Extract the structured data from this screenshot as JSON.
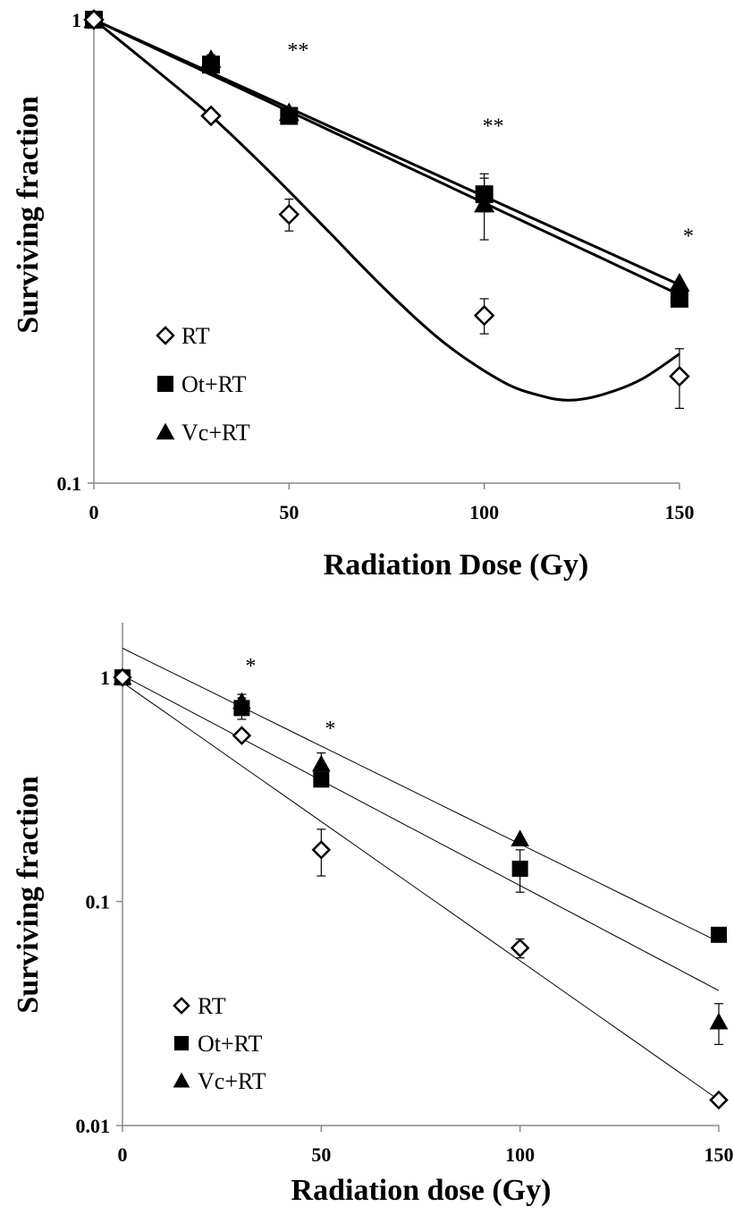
{
  "chart_data": [
    {
      "type": "scatter",
      "xlabel": "Radiation Dose (Gy)",
      "ylabel": "Surviving fraction",
      "yscale": "log",
      "xlim": [
        0,
        150
      ],
      "ylim": [
        0.1,
        1
      ],
      "xticks": [
        0,
        50,
        100,
        150
      ],
      "yticks": [
        0.1,
        1
      ],
      "ytick_labels": [
        "0.1",
        "1"
      ],
      "grid": false,
      "legend_position": "bottom-left",
      "x": [
        0,
        30,
        50,
        100,
        150
      ],
      "series": [
        {
          "name": "RT",
          "marker": "diamond-open",
          "values": [
            1,
            0.62,
            0.38,
            0.23,
            0.17
          ],
          "err": [
            0,
            0,
            0.03,
            0.02,
            0.025
          ]
        },
        {
          "name": "Ot+RT",
          "marker": "square",
          "values": [
            1,
            0.8,
            0.62,
            0.42,
            0.25
          ],
          "err": [
            0,
            0,
            0,
            0.035,
            0
          ]
        },
        {
          "name": "Vc+RT",
          "marker": "triangle",
          "values": [
            1,
            0.82,
            0.63,
            0.4,
            0.27
          ],
          "err": [
            0,
            0.02,
            0,
            0.065,
            0
          ]
        }
      ],
      "fits": [
        {
          "series": "RT",
          "kind": "polynomial",
          "x": [
            0,
            15,
            30,
            45,
            60,
            75,
            90,
            105,
            115,
            122,
            130,
            140,
            150
          ],
          "values": [
            1,
            0.79,
            0.62,
            0.47,
            0.35,
            0.26,
            0.2,
            0.165,
            0.154,
            0.151,
            0.155,
            0.167,
            0.19
          ]
        },
        {
          "series": "Ot+RT",
          "kind": "exponential",
          "x": [
            0,
            150
          ],
          "values": [
            1,
            0.255
          ]
        },
        {
          "series": "Vc+RT",
          "kind": "exponential",
          "x": [
            0,
            150
          ],
          "values": [
            1,
            0.268
          ]
        }
      ],
      "annotations": [
        {
          "x": 30,
          "text": "**",
          "y": 1.07
        },
        {
          "x": 50,
          "text": "**",
          "y": 0.83
        },
        {
          "x": 100,
          "text": "**",
          "y": 0.57
        },
        {
          "x": 150,
          "text": "*",
          "y": 0.33
        }
      ]
    },
    {
      "type": "scatter",
      "xlabel": "Radiation dose (Gy)",
      "ylabel": "Surviving fraction",
      "yscale": "log",
      "xlim": [
        0,
        150
      ],
      "ylim": [
        0.01,
        1.6
      ],
      "xticks": [
        0,
        50,
        100,
        150
      ],
      "yticks": [
        0.01,
        0.1,
        1
      ],
      "ytick_labels": [
        "0.01",
        "0.1",
        "1"
      ],
      "grid": false,
      "legend_position": "bottom-left",
      "x": [
        0,
        30,
        50,
        100,
        150
      ],
      "series": [
        {
          "name": "RT",
          "marker": "diamond-open",
          "values": [
            1,
            0.55,
            0.17,
            0.062,
            0.013
          ],
          "err": [
            0,
            0,
            0.04,
            0.006,
            0
          ]
        },
        {
          "name": "Ot+RT",
          "marker": "square",
          "values": [
            1,
            0.73,
            0.35,
            0.14,
            0.071
          ],
          "err": [
            0,
            0.08,
            0,
            0.03,
            0
          ]
        },
        {
          "name": "Vc+RT",
          "marker": "triangle",
          "values": [
            1,
            0.78,
            0.41,
            0.19,
            0.029
          ],
          "err": [
            0,
            0.06,
            0.05,
            0,
            0.006
          ]
        }
      ],
      "fits": [
        {
          "series": "RT",
          "kind": "exponential",
          "x": [
            0,
            150
          ],
          "values": [
            0.95,
            0.013
          ]
        },
        {
          "series": "Ot+RT",
          "kind": "exponential",
          "x": [
            0,
            150
          ],
          "values": [
            1.35,
            0.066
          ]
        },
        {
          "series": "Vc+RT",
          "kind": "exponential",
          "x": [
            0,
            150
          ],
          "values": [
            1.02,
            0.04
          ]
        }
      ],
      "annotations": [
        {
          "x": 30,
          "text": "*",
          "y": 1.05
        },
        {
          "x": 50,
          "text": "*",
          "y": 0.55
        }
      ]
    }
  ]
}
